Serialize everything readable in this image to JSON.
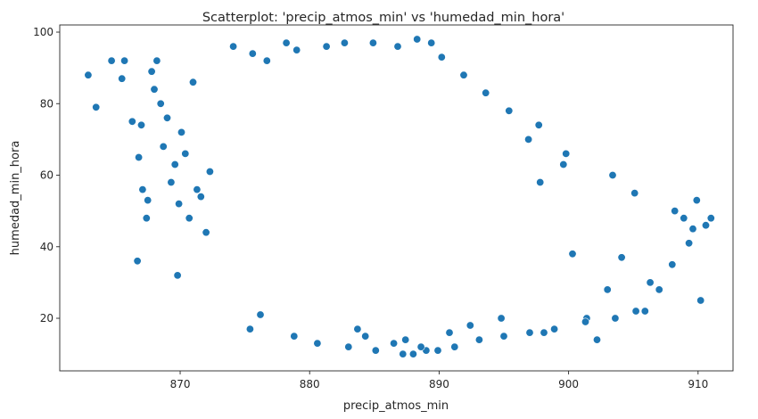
{
  "chart_data": {
    "type": "scatter",
    "title": "Scatterplot: 'precip_atmos_min' vs 'humedad_min_hora'",
    "xlabel": "precip_atmos_min",
    "ylabel": "humedad_min_hora",
    "xlim": [
      860.7,
      912.7
    ],
    "ylim": [
      5.3,
      102.0
    ],
    "xticks": [
      870,
      880,
      890,
      900,
      910
    ],
    "yticks": [
      20,
      40,
      60,
      80,
      100
    ],
    "grid": false,
    "legend": "none",
    "marker_color": "#1f77b4",
    "marker_edge": "#ffffff",
    "series": [
      {
        "x": [
          862.9,
          863.5,
          864.7,
          865.5,
          865.7,
          866.3,
          866.7,
          866.8,
          867.0,
          867.1,
          867.4,
          867.5,
          867.8,
          868.0,
          868.2,
          868.5,
          868.7,
          869.0,
          869.3,
          869.6,
          869.8,
          870.1,
          870.4,
          870.7,
          871.0,
          871.3,
          871.6,
          872.0,
          872.3,
          869.9,
          907.0,
          908.2,
          908.9,
          909.3,
          909.6,
          909.9,
          910.2,
          910.6,
          911.0,
          908.0,
          906.3,
          905.2,
          904.1,
          903.0,
          902.2,
          901.4,
          900.3,
          899.6,
          898.1,
          897.8,
          896.9,
          874.1,
          875.6,
          876.7,
          878.2,
          879.0,
          881.3,
          882.7,
          884.9,
          886.8,
          888.3,
          889.4,
          890.2,
          891.9,
          893.6,
          895.4,
          897.7,
          899.8,
          903.4,
          905.1,
          875.4,
          876.2,
          878.8,
          880.6,
          883.0,
          885.1,
          887.2,
          889.0,
          891.2,
          893.1,
          895.0,
          897.0,
          898.9,
          901.3,
          903.6,
          905.9,
          888.0,
          888.6,
          886.5,
          889.9,
          887.4,
          890.8,
          884.3,
          892.4,
          883.7,
          894.8
        ],
        "y": [
          88,
          79,
          92,
          87,
          92,
          75,
          36,
          65,
          74,
          56,
          48,
          53,
          89,
          84,
          92,
          80,
          68,
          76,
          58,
          63,
          32,
          72,
          66,
          48,
          86,
          56,
          54,
          44,
          61,
          52,
          28,
          50,
          48,
          41,
          45,
          53,
          25,
          46,
          48,
          35,
          30,
          22,
          37,
          28,
          14,
          20,
          38,
          63,
          16,
          58,
          70,
          96,
          94,
          92,
          97,
          95,
          96,
          97,
          97,
          96,
          98,
          97,
          93,
          88,
          83,
          78,
          74,
          66,
          60,
          55,
          17,
          21,
          15,
          13,
          12,
          11,
          10,
          11,
          12,
          14,
          15,
          16,
          17,
          19,
          20,
          22,
          10,
          12,
          13,
          11,
          14,
          16,
          15,
          18,
          17,
          20
        ]
      }
    ]
  }
}
